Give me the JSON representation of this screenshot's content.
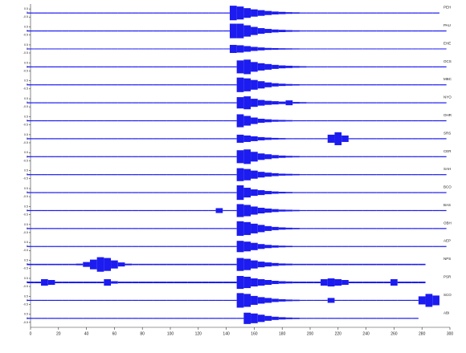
{
  "chart_data": {
    "type": "seismogram",
    "color": "#1c1cf0",
    "ylim": [
      -1,
      1
    ],
    "yticks": [
      -0.5,
      0,
      0.5
    ],
    "xlim": [
      0,
      300
    ],
    "xticks": [
      0,
      20,
      40,
      60,
      80,
      100,
      120,
      140,
      160,
      180,
      200,
      220,
      240,
      260,
      280,
      300
    ],
    "x": [
      0,
      5,
      10,
      15,
      20,
      25,
      30,
      35,
      40,
      45,
      50,
      55,
      60,
      65,
      70,
      75,
      80,
      85,
      90,
      95,
      100,
      105,
      110,
      115,
      120,
      125,
      130,
      135,
      140,
      145,
      150,
      155,
      160,
      165,
      170,
      175,
      180,
      185,
      190,
      195,
      200,
      205,
      210,
      215,
      220,
      225,
      230,
      235,
      240,
      245,
      250,
      255,
      260,
      265,
      270,
      275,
      280,
      285,
      290,
      295,
      300
    ],
    "series": [
      {
        "name": "PEH",
        "values": [
          0.06,
          0.06,
          0.06,
          0.06,
          0.06,
          0.06,
          0.06,
          0.06,
          0.06,
          0.06,
          0.06,
          0.06,
          0.06,
          0.06,
          0.06,
          0.06,
          0.06,
          0.06,
          0.06,
          0.06,
          0.06,
          0.06,
          0.06,
          0.06,
          0.06,
          0.06,
          0.06,
          0.06,
          0.06,
          0.9,
          0.8,
          0.6,
          0.45,
          0.35,
          0.25,
          0.18,
          0.14,
          0.1,
          0.08,
          0.06,
          0.06,
          0.06,
          0.06,
          0.06,
          0.06,
          0.06,
          0.06,
          0.06,
          0.06,
          0.06,
          0.06,
          0.06,
          0.06,
          0.06,
          0.06,
          0.06,
          0.06,
          0.06,
          0.06,
          null,
          null
        ]
      },
      {
        "name": "PAU",
        "values": [
          0.06,
          0.06,
          0.06,
          0.06,
          0.06,
          0.06,
          0.06,
          0.06,
          0.06,
          0.06,
          0.06,
          0.06,
          0.06,
          0.06,
          0.06,
          0.06,
          0.06,
          0.06,
          0.06,
          0.06,
          0.06,
          0.06,
          0.06,
          0.06,
          0.06,
          0.06,
          0.06,
          0.06,
          0.06,
          0.9,
          0.9,
          0.7,
          0.5,
          0.35,
          0.25,
          0.18,
          0.14,
          0.1,
          0.08,
          0.06,
          0.06,
          0.06,
          0.06,
          0.06,
          0.06,
          0.06,
          0.06,
          0.06,
          0.06,
          0.06,
          0.06,
          0.06,
          0.06,
          0.06,
          0.06,
          0.06,
          0.06,
          0.06,
          0.06,
          0.06,
          null
        ]
      },
      {
        "name": "EHE",
        "values": [
          0.05,
          0.05,
          0.05,
          0.05,
          0.05,
          0.05,
          0.05,
          0.05,
          0.05,
          0.05,
          0.05,
          0.05,
          0.05,
          0.05,
          0.05,
          0.05,
          0.05,
          0.05,
          0.05,
          0.05,
          0.05,
          0.05,
          0.05,
          0.05,
          0.05,
          0.05,
          0.05,
          0.05,
          0.05,
          0.5,
          0.45,
          0.35,
          0.25,
          0.18,
          0.12,
          0.1,
          0.08,
          0.07,
          0.06,
          0.05,
          0.05,
          0.05,
          0.05,
          0.05,
          0.05,
          0.05,
          0.05,
          0.05,
          0.05,
          0.05,
          0.05,
          0.05,
          0.05,
          0.05,
          0.05,
          0.05,
          0.05,
          0.05,
          0.05,
          0.05,
          null
        ]
      },
      {
        "name": "OCS",
        "values": [
          0.06,
          0.06,
          0.06,
          0.06,
          0.06,
          0.06,
          0.06,
          0.06,
          0.06,
          0.06,
          0.06,
          0.06,
          0.06,
          0.06,
          0.06,
          0.06,
          0.06,
          0.06,
          0.06,
          0.06,
          0.06,
          0.06,
          0.06,
          0.06,
          0.06,
          0.06,
          0.06,
          0.06,
          0.06,
          0.06,
          0.8,
          0.9,
          0.6,
          0.45,
          0.35,
          0.25,
          0.18,
          0.14,
          0.1,
          0.08,
          0.06,
          0.06,
          0.06,
          0.06,
          0.06,
          0.06,
          0.06,
          0.06,
          0.06,
          0.06,
          0.06,
          0.06,
          0.06,
          0.06,
          0.06,
          0.06,
          0.06,
          0.06,
          0.06,
          0.06,
          null
        ]
      },
      {
        "name": "MBC",
        "values": [
          0.06,
          0.06,
          0.06,
          0.06,
          0.06,
          0.06,
          0.06,
          0.06,
          0.06,
          0.06,
          0.06,
          0.06,
          0.06,
          0.06,
          0.06,
          0.06,
          0.06,
          0.06,
          0.06,
          0.06,
          0.06,
          0.06,
          0.06,
          0.06,
          0.06,
          0.06,
          0.06,
          0.06,
          0.06,
          0.06,
          0.9,
          0.8,
          0.6,
          0.45,
          0.3,
          0.2,
          0.14,
          0.1,
          0.08,
          0.06,
          0.06,
          0.06,
          0.06,
          0.06,
          0.06,
          0.06,
          0.06,
          0.06,
          0.06,
          0.06,
          0.06,
          0.06,
          0.06,
          0.06,
          0.06,
          0.06,
          0.06,
          0.06,
          0.06,
          0.06,
          null
        ]
      },
      {
        "name": "NYO",
        "values": [
          0.06,
          0.06,
          0.06,
          0.06,
          0.06,
          0.06,
          0.06,
          0.06,
          0.06,
          0.06,
          0.06,
          0.06,
          0.06,
          0.06,
          0.06,
          0.06,
          0.06,
          0.06,
          0.06,
          0.06,
          0.06,
          0.06,
          0.06,
          0.06,
          0.06,
          0.06,
          0.06,
          0.06,
          0.06,
          0.06,
          0.7,
          0.8,
          0.5,
          0.35,
          0.25,
          0.2,
          0.15,
          0.3,
          0.1,
          0.08,
          0.06,
          0.06,
          0.06,
          0.06,
          0.06,
          0.06,
          0.06,
          0.06,
          0.06,
          0.06,
          0.06,
          0.06,
          0.06,
          0.06,
          0.06,
          0.06,
          0.06,
          0.06,
          0.06,
          0.06,
          null
        ]
      },
      {
        "name": "OHR",
        "values": [
          0.06,
          0.06,
          0.06,
          0.06,
          0.06,
          0.06,
          0.06,
          0.06,
          0.06,
          0.06,
          0.06,
          0.06,
          0.06,
          0.06,
          0.06,
          0.06,
          0.06,
          0.06,
          0.06,
          0.06,
          0.06,
          0.06,
          0.06,
          0.06,
          0.06,
          0.06,
          0.06,
          0.06,
          0.06,
          0.06,
          0.8,
          0.6,
          0.4,
          0.25,
          0.18,
          0.12,
          0.1,
          0.08,
          0.06,
          0.06,
          0.06,
          0.06,
          0.06,
          0.06,
          0.06,
          0.06,
          0.06,
          0.06,
          0.06,
          0.06,
          0.06,
          0.06,
          0.06,
          0.06,
          0.06,
          0.06,
          0.06,
          0.06,
          0.06,
          0.06,
          null
        ]
      },
      {
        "name": "SRS",
        "values": [
          0.06,
          0.06,
          0.06,
          0.06,
          0.06,
          0.06,
          0.06,
          0.06,
          0.06,
          0.06,
          0.06,
          0.06,
          0.06,
          0.06,
          0.06,
          0.06,
          0.06,
          0.06,
          0.06,
          0.06,
          0.06,
          0.06,
          0.06,
          0.06,
          0.06,
          0.06,
          0.06,
          0.06,
          0.06,
          0.06,
          0.5,
          0.4,
          0.3,
          0.2,
          0.14,
          0.1,
          0.08,
          0.06,
          0.06,
          0.06,
          0.06,
          0.06,
          0.06,
          0.5,
          0.8,
          0.4,
          0.06,
          0.06,
          0.06,
          0.06,
          0.06,
          0.06,
          0.06,
          0.06,
          0.06,
          0.06,
          0.06,
          0.06,
          0.06,
          0.06,
          null
        ]
      },
      {
        "name": "CER",
        "values": [
          0.06,
          0.06,
          0.06,
          0.06,
          0.06,
          0.06,
          0.06,
          0.06,
          0.06,
          0.06,
          0.06,
          0.06,
          0.06,
          0.06,
          0.06,
          0.06,
          0.06,
          0.06,
          0.06,
          0.06,
          0.06,
          0.06,
          0.06,
          0.06,
          0.06,
          0.06,
          0.06,
          0.06,
          0.06,
          0.06,
          0.8,
          0.9,
          0.6,
          0.4,
          0.3,
          0.2,
          0.14,
          0.1,
          0.08,
          0.06,
          0.06,
          0.06,
          0.06,
          0.06,
          0.06,
          0.06,
          0.06,
          0.06,
          0.06,
          0.06,
          0.06,
          0.06,
          0.06,
          0.06,
          0.06,
          0.06,
          0.06,
          0.06,
          0.06,
          0.06,
          null
        ]
      },
      {
        "name": "SAH",
        "values": [
          0.06,
          0.06,
          0.06,
          0.06,
          0.06,
          0.06,
          0.06,
          0.06,
          0.06,
          0.06,
          0.06,
          0.06,
          0.06,
          0.06,
          0.06,
          0.06,
          0.06,
          0.06,
          0.06,
          0.06,
          0.06,
          0.06,
          0.06,
          0.06,
          0.06,
          0.06,
          0.06,
          0.06,
          0.06,
          0.06,
          0.8,
          0.7,
          0.5,
          0.35,
          0.25,
          0.18,
          0.12,
          0.1,
          0.08,
          0.06,
          0.06,
          0.06,
          0.06,
          0.06,
          0.06,
          0.06,
          0.06,
          0.06,
          0.06,
          0.06,
          0.06,
          0.06,
          0.06,
          0.06,
          0.06,
          0.06,
          0.06,
          0.06,
          0.06,
          0.06,
          null
        ]
      },
      {
        "name": "BCO",
        "values": [
          0.06,
          0.06,
          0.06,
          0.06,
          0.06,
          0.06,
          0.06,
          0.06,
          0.06,
          0.06,
          0.06,
          0.06,
          0.06,
          0.06,
          0.06,
          0.06,
          0.06,
          0.06,
          0.06,
          0.06,
          0.06,
          0.06,
          0.06,
          0.06,
          0.06,
          0.06,
          0.06,
          0.06,
          0.06,
          0.06,
          0.9,
          0.6,
          0.4,
          0.3,
          0.2,
          0.14,
          0.1,
          0.08,
          0.06,
          0.06,
          0.06,
          0.06,
          0.06,
          0.06,
          0.06,
          0.06,
          0.06,
          0.06,
          0.06,
          0.06,
          0.06,
          0.06,
          0.06,
          0.06,
          0.06,
          0.06,
          0.06,
          0.06,
          0.06,
          0.06,
          null
        ]
      },
      {
        "name": "BAS",
        "values": [
          0.06,
          0.06,
          0.06,
          0.06,
          0.06,
          0.06,
          0.06,
          0.06,
          0.06,
          0.06,
          0.06,
          0.06,
          0.06,
          0.06,
          0.06,
          0.06,
          0.06,
          0.06,
          0.06,
          0.06,
          0.06,
          0.06,
          0.06,
          0.06,
          0.06,
          0.06,
          0.06,
          0.3,
          0.06,
          0.06,
          0.8,
          0.7,
          0.5,
          0.35,
          0.25,
          0.18,
          0.12,
          0.1,
          0.08,
          0.06,
          0.06,
          0.06,
          0.06,
          0.06,
          0.06,
          0.06,
          0.06,
          0.06,
          0.06,
          0.06,
          0.06,
          0.06,
          0.06,
          0.06,
          0.06,
          0.06,
          0.06,
          0.06,
          0.06,
          0.06,
          null
        ]
      },
      {
        "name": "OBH",
        "values": [
          0.06,
          0.06,
          0.06,
          0.06,
          0.06,
          0.06,
          0.06,
          0.06,
          0.06,
          0.06,
          0.06,
          0.06,
          0.06,
          0.06,
          0.06,
          0.06,
          0.06,
          0.06,
          0.06,
          0.06,
          0.06,
          0.06,
          0.06,
          0.06,
          0.06,
          0.06,
          0.06,
          0.06,
          0.06,
          0.06,
          0.9,
          0.8,
          0.6,
          0.45,
          0.3,
          0.2,
          0.14,
          0.1,
          0.08,
          0.06,
          0.06,
          0.06,
          0.06,
          0.06,
          0.06,
          0.06,
          0.06,
          0.06,
          0.06,
          0.06,
          0.06,
          0.06,
          0.06,
          0.06,
          0.06,
          0.06,
          0.06,
          0.06,
          0.06,
          0.06,
          null
        ]
      },
      {
        "name": "AEP",
        "values": [
          0.06,
          0.06,
          0.06,
          0.06,
          0.06,
          0.06,
          0.06,
          0.06,
          0.06,
          0.06,
          0.06,
          0.06,
          0.06,
          0.06,
          0.06,
          0.06,
          0.06,
          0.06,
          0.06,
          0.06,
          0.06,
          0.06,
          0.06,
          0.06,
          0.06,
          0.06,
          0.06,
          0.06,
          0.06,
          0.06,
          0.7,
          0.6,
          0.45,
          0.3,
          0.2,
          0.14,
          0.1,
          0.08,
          0.06,
          0.06,
          0.06,
          0.06,
          0.06,
          0.06,
          0.06,
          0.06,
          0.06,
          0.06,
          0.06,
          0.06,
          0.06,
          0.06,
          0.06,
          0.06,
          0.06,
          0.06,
          0.06,
          0.06,
          0.06,
          0.06,
          null
        ]
      },
      {
        "name": "NPS",
        "values": [
          0.08,
          0.08,
          0.08,
          0.08,
          0.08,
          0.08,
          0.08,
          0.1,
          0.3,
          0.6,
          0.9,
          0.8,
          0.5,
          0.25,
          0.1,
          0.08,
          0.08,
          0.08,
          0.08,
          0.08,
          0.08,
          0.08,
          0.08,
          0.08,
          0.08,
          0.08,
          0.08,
          0.08,
          0.08,
          0.08,
          0.8,
          0.7,
          0.5,
          0.35,
          0.25,
          0.18,
          0.12,
          0.1,
          0.08,
          0.08,
          0.08,
          0.08,
          0.08,
          0.08,
          0.08,
          0.08,
          0.08,
          0.08,
          0.08,
          0.08,
          0.08,
          0.08,
          0.08,
          0.08,
          0.08,
          0.08,
          0.08,
          null,
          null,
          null,
          null
        ]
      },
      {
        "name": "PSR",
        "values": [
          0.1,
          0.1,
          0.4,
          0.3,
          0.1,
          0.1,
          0.1,
          0.1,
          0.1,
          0.1,
          0.1,
          0.4,
          0.15,
          0.1,
          0.1,
          0.1,
          0.1,
          0.1,
          0.1,
          0.1,
          0.1,
          0.1,
          0.1,
          0.1,
          0.1,
          0.1,
          0.1,
          0.1,
          0.1,
          0.1,
          0.8,
          0.7,
          0.5,
          0.4,
          0.3,
          0.2,
          0.15,
          0.12,
          0.1,
          0.1,
          0.1,
          0.1,
          0.4,
          0.5,
          0.4,
          0.3,
          0.1,
          0.1,
          0.1,
          0.1,
          0.1,
          0.1,
          0.4,
          0.1,
          0.1,
          0.1,
          0.1,
          null,
          null,
          null,
          null
        ]
      },
      {
        "name": "SCO",
        "values": [
          0.06,
          0.06,
          0.06,
          0.06,
          0.06,
          0.06,
          0.06,
          0.06,
          0.06,
          0.06,
          0.06,
          0.06,
          0.06,
          0.06,
          0.06,
          0.06,
          0.06,
          0.06,
          0.06,
          0.06,
          0.06,
          0.06,
          0.06,
          0.06,
          0.06,
          0.06,
          0.06,
          0.06,
          0.06,
          0.06,
          0.9,
          0.8,
          0.55,
          0.4,
          0.3,
          0.2,
          0.14,
          0.1,
          0.08,
          0.06,
          0.06,
          0.06,
          0.06,
          0.3,
          0.06,
          0.06,
          0.06,
          0.06,
          0.06,
          0.06,
          0.06,
          0.06,
          0.06,
          0.06,
          0.06,
          0.06,
          0.5,
          0.8,
          0.6,
          null,
          null
        ]
      },
      {
        "name": "ABI",
        "values": [
          0.06,
          0.06,
          0.06,
          0.06,
          0.06,
          0.06,
          0.06,
          0.06,
          0.06,
          0.06,
          0.06,
          0.06,
          0.06,
          0.06,
          0.06,
          0.06,
          0.06,
          0.06,
          0.06,
          0.06,
          0.06,
          0.06,
          0.06,
          0.06,
          0.06,
          0.06,
          0.06,
          0.06,
          0.06,
          0.06,
          0.06,
          0.7,
          0.6,
          0.45,
          0.3,
          0.2,
          0.14,
          0.1,
          0.08,
          0.06,
          0.06,
          0.06,
          0.06,
          0.06,
          0.06,
          0.06,
          0.06,
          0.06,
          0.06,
          0.06,
          0.06,
          0.06,
          0.06,
          0.06,
          0.06,
          0.06,
          null,
          null,
          null,
          null,
          null
        ]
      }
    ]
  }
}
